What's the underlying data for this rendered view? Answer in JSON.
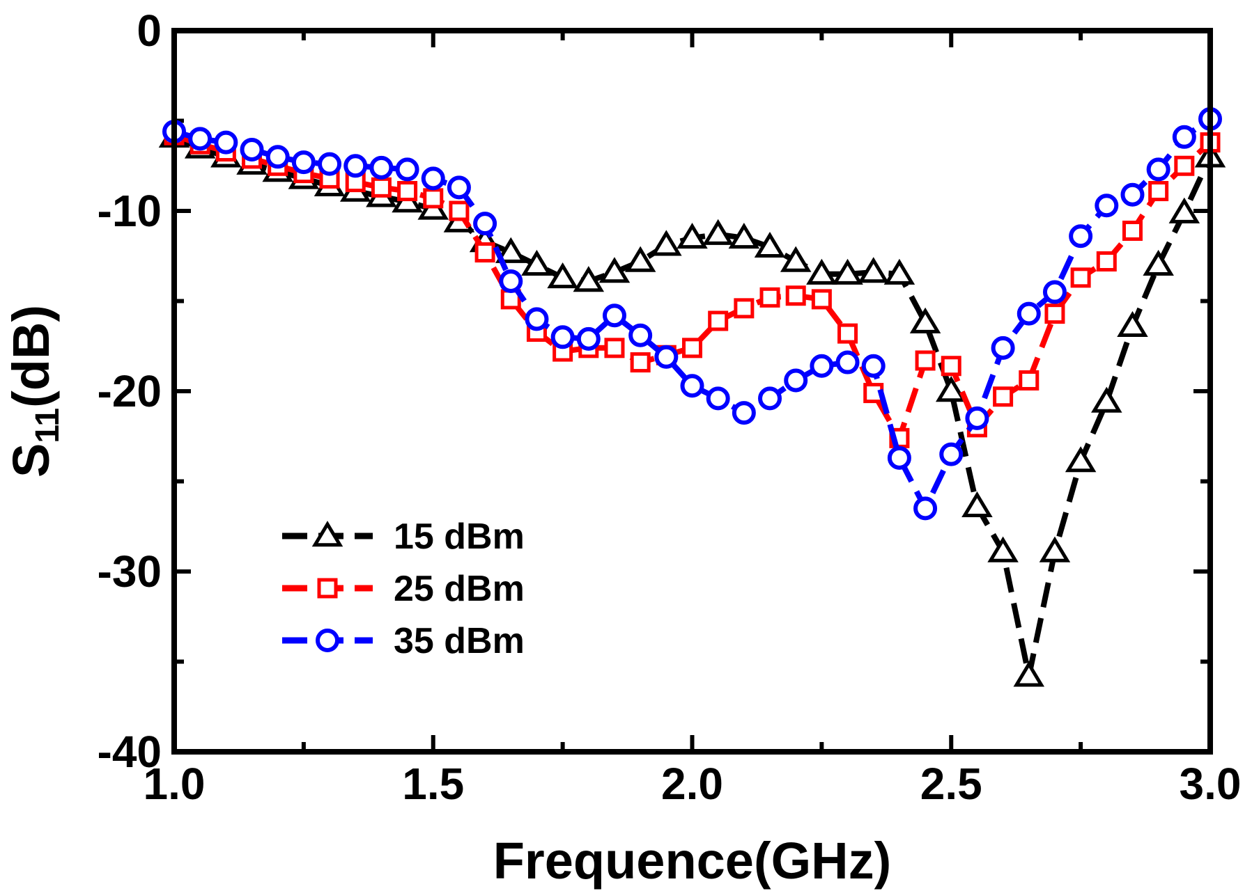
{
  "chart_data": {
    "type": "line",
    "title": "",
    "xlabel": "Frequence(GHz)",
    "ylabel": {
      "main": "S",
      "subscript": "11",
      "suffix": "(dB)"
    },
    "xlim": [
      1.0,
      3.0
    ],
    "ylim": [
      -40,
      0
    ],
    "xticks": [
      1.0,
      1.5,
      2.0,
      2.5,
      3.0
    ],
    "xtick_labels": [
      "1.0",
      "1.5",
      "2.0",
      "2.5",
      "3.0"
    ],
    "yticks": [
      0,
      -10,
      -20,
      -30,
      -40
    ],
    "ytick_labels": [
      "0",
      "-10",
      "-20",
      "-30",
      "-40"
    ],
    "grid": false,
    "legend_position": "lower-left",
    "x": [
      1.0,
      1.05,
      1.1,
      1.15,
      1.2,
      1.25,
      1.3,
      1.35,
      1.4,
      1.45,
      1.5,
      1.55,
      1.6,
      1.65,
      1.7,
      1.75,
      1.8,
      1.85,
      1.9,
      1.95,
      2.0,
      2.05,
      2.1,
      2.15,
      2.2,
      2.25,
      2.3,
      2.35,
      2.4,
      2.45,
      2.5,
      2.55,
      2.6,
      2.65,
      2.7,
      2.75,
      2.8,
      2.85,
      2.9,
      2.95,
      3.0
    ],
    "series": [
      {
        "name": "15 dBm",
        "color": "#000000",
        "marker": "triangle",
        "values": [
          -5.9,
          -6.5,
          -7.0,
          -7.4,
          -7.8,
          -8.2,
          -8.6,
          -8.9,
          -9.2,
          -9.5,
          -9.9,
          -10.6,
          -11.7,
          -12.3,
          -13.0,
          -13.7,
          -13.9,
          -13.4,
          -12.8,
          -11.9,
          -11.5,
          -11.3,
          -11.5,
          -12.0,
          -12.8,
          -13.5,
          -13.5,
          -13.4,
          -13.5,
          -16.2,
          -20.0,
          -26.4,
          -28.9,
          -35.8,
          -28.9,
          -23.9,
          -20.6,
          -16.4,
          -13.0,
          -10.1,
          -7.0
        ]
      },
      {
        "name": "25 dBm",
        "color": "#ff0000",
        "marker": "square",
        "values": [
          -5.8,
          -6.3,
          -6.7,
          -7.1,
          -7.5,
          -7.9,
          -8.2,
          -8.4,
          -8.7,
          -8.9,
          -9.3,
          -10.0,
          -12.3,
          -14.9,
          -16.7,
          -17.8,
          -17.6,
          -17.6,
          -18.4,
          -18.0,
          -17.6,
          -16.1,
          -15.4,
          -14.8,
          -14.7,
          -14.9,
          -16.8,
          -20.1,
          -22.6,
          -18.3,
          -18.6,
          -22.0,
          -20.3,
          -19.4,
          -15.7,
          -13.7,
          -12.8,
          -11.1,
          -8.9,
          -7.5,
          -6.2
        ]
      },
      {
        "name": "35 dBm",
        "color": "#0000ff",
        "marker": "circle",
        "values": [
          -5.6,
          -6.0,
          -6.2,
          -6.6,
          -7.0,
          -7.3,
          -7.4,
          -7.5,
          -7.6,
          -7.7,
          -8.2,
          -8.7,
          -10.7,
          -13.9,
          -16.0,
          -17.0,
          -17.1,
          -15.8,
          -16.9,
          -18.1,
          -19.7,
          -20.4,
          -21.2,
          -20.4,
          -19.4,
          -18.6,
          -18.4,
          -18.6,
          -23.7,
          -26.5,
          -23.5,
          -21.5,
          -17.6,
          -15.7,
          -14.5,
          -11.4,
          -9.7,
          -9.1,
          -7.7,
          -5.9,
          -4.9
        ]
      }
    ]
  }
}
